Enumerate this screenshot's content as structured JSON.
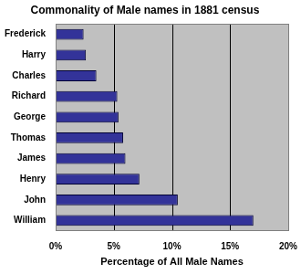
{
  "chart_data": {
    "type": "bar",
    "orientation": "horizontal",
    "title": "Commonality of Male names in 1881 census",
    "xlabel": "Percentage of All Male Names",
    "categories": [
      "Frederick",
      "Harry",
      "Charles",
      "Richard",
      "George",
      "Thomas",
      "James",
      "Henry",
      "John",
      "William"
    ],
    "values": [
      2.4,
      2.6,
      3.5,
      5.3,
      5.4,
      5.8,
      6.0,
      7.2,
      10.5,
      17.0
    ],
    "color": "#333399",
    "xlim": [
      0,
      20
    ],
    "xticks": [
      {
        "value": 0,
        "label": "0%"
      },
      {
        "value": 5,
        "label": "5%"
      },
      {
        "value": 10,
        "label": "10%"
      },
      {
        "value": 15,
        "label": "15%"
      },
      {
        "value": 20,
        "label": "20%"
      }
    ],
    "grid": true
  }
}
